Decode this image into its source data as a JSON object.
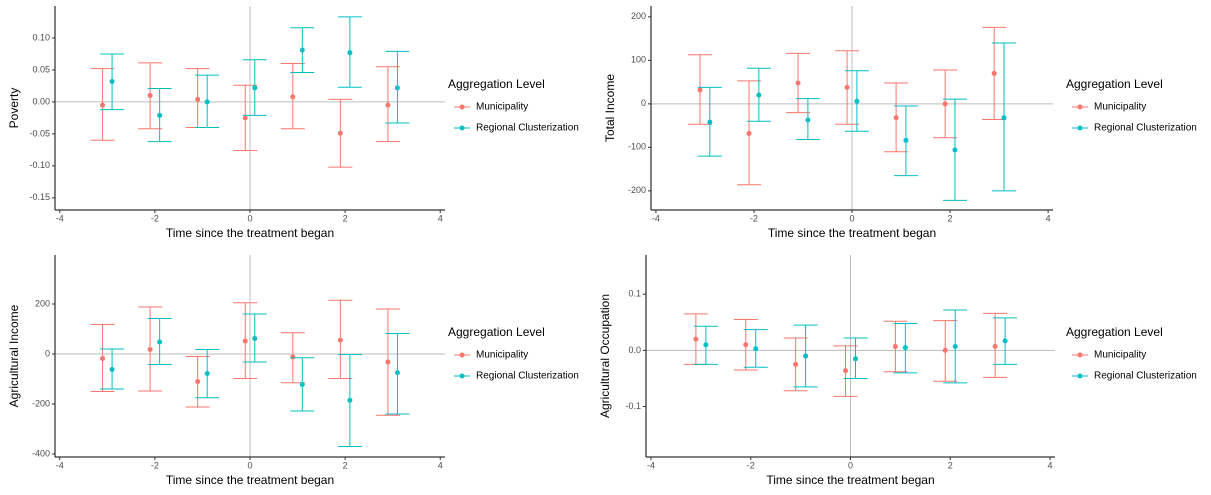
{
  "chart_data": [
    {
      "type": "errorbar",
      "x_label": "Time since the treatment began",
      "y_label": "Poverty",
      "legend_title": "Aggregation Level",
      "x": [
        -3,
        -2,
        -1,
        0,
        1,
        2,
        3
      ],
      "xlim": [
        -4.1,
        4.1
      ],
      "xticks": [
        -4,
        -2,
        0,
        2,
        4
      ],
      "ylim": [
        -0.169,
        0.15
      ],
      "yticks": [
        {
          "value": -0.15,
          "label": "-0.15"
        },
        {
          "value": -0.1,
          "label": "-0.10"
        },
        {
          "value": -0.05,
          "label": "-0.05"
        },
        {
          "value": 0,
          "label": "0.00"
        },
        {
          "value": 0.05,
          "label": "0.05"
        },
        {
          "value": 0.1,
          "label": "0.10"
        }
      ],
      "series": [
        {
          "name": "Municipality",
          "color": "#F8766D",
          "values": [
            -0.005,
            0.01,
            0.004,
            -0.025,
            0.008,
            -0.049,
            -0.005
          ],
          "lower": [
            -0.06,
            -0.042,
            -0.04,
            -0.076,
            -0.042,
            -0.102,
            -0.062
          ],
          "upper": [
            0.052,
            0.061,
            0.052,
            0.026,
            0.06,
            0.004,
            0.055
          ]
        },
        {
          "name": "Regional Clusterization",
          "color": "#00BFC4",
          "values": [
            0.032,
            -0.021,
            0.0,
            0.022,
            0.081,
            0.077,
            0.022
          ],
          "lower": [
            -0.012,
            -0.062,
            -0.04,
            -0.021,
            0.046,
            0.023,
            -0.033
          ],
          "upper": [
            0.075,
            0.021,
            0.042,
            0.066,
            0.116,
            0.133,
            0.079
          ]
        }
      ]
    },
    {
      "type": "errorbar",
      "x_label": "Time since the treatment began",
      "y_label": "Total Income",
      "legend_title": "Aggregation Level",
      "x": [
        -3,
        -2,
        -1,
        0,
        1,
        2,
        3
      ],
      "xlim": [
        -4.1,
        4.1
      ],
      "xticks": [
        -4,
        -2,
        0,
        2,
        4
      ],
      "ylim": [
        -244,
        225
      ],
      "yticks": [
        -200,
        -100,
        0,
        100,
        200
      ],
      "series": [
        {
          "name": "Municipality",
          "color": "#F8766D",
          "values": [
            32,
            -68,
            48,
            38,
            -32,
            0,
            70
          ],
          "lower": [
            -47,
            -186,
            -20,
            -47,
            -110,
            -78,
            -36
          ],
          "upper": [
            113,
            53,
            116,
            122,
            48,
            78,
            176
          ]
        },
        {
          "name": "Regional Clusterization",
          "color": "#00BFC4",
          "values": [
            -42,
            20,
            -37,
            6,
            -84,
            -106,
            -32
          ],
          "lower": [
            -120,
            -40,
            -82,
            -63,
            -165,
            -222,
            -200
          ],
          "upper": [
            38,
            82,
            12,
            76,
            -5,
            11,
            140
          ]
        }
      ]
    },
    {
      "type": "errorbar",
      "x_label": "Time since the treatment began",
      "y_label": "Agricultural Income",
      "legend_title": "Aggregation Level",
      "x": [
        -3,
        -2,
        -1,
        0,
        1,
        2,
        3
      ],
      "xlim": [
        -4.1,
        4.1
      ],
      "xticks": [
        -4,
        -2,
        0,
        2,
        4
      ],
      "ylim": [
        -412,
        396
      ],
      "yticks": [
        -400,
        -200,
        0,
        200
      ],
      "series": [
        {
          "name": "Municipality",
          "color": "#F8766D",
          "values": [
            -18,
            18,
            -110,
            52,
            -12,
            55,
            -32
          ],
          "lower": [
            -150,
            -148,
            -212,
            -98,
            -115,
            -98,
            -245
          ],
          "upper": [
            118,
            188,
            -10,
            205,
            85,
            215,
            180
          ]
        },
        {
          "name": "Regional Clusterization",
          "color": "#00BFC4",
          "values": [
            -62,
            48,
            -78,
            62,
            -122,
            -185,
            -75
          ],
          "lower": [
            -140,
            -42,
            -175,
            -32,
            -228,
            -370,
            -240
          ],
          "upper": [
            20,
            142,
            18,
            160,
            -15,
            -2,
            82
          ]
        }
      ]
    },
    {
      "type": "errorbar",
      "x_label": "Time since the treatment began",
      "y_label": "Agricultural Occupation",
      "legend_title": "Aggregation Level",
      "x": [
        -3,
        -2,
        -1,
        0,
        1,
        2,
        3
      ],
      "xlim": [
        -4.1,
        4.1
      ],
      "xticks": [
        -4,
        -2,
        0,
        2,
        4
      ],
      "ylim": [
        -0.19,
        0.17
      ],
      "yticks": [
        -0.1,
        {
          "value": 0,
          "label": "0.0"
        },
        0.1
      ],
      "series": [
        {
          "name": "Municipality",
          "color": "#F8766D",
          "values": [
            0.02,
            0.01,
            -0.025,
            -0.036,
            0.007,
            0.0,
            0.007
          ],
          "lower": [
            -0.025,
            -0.035,
            -0.072,
            -0.082,
            -0.038,
            -0.055,
            -0.048
          ],
          "upper": [
            0.065,
            0.055,
            0.022,
            0.008,
            0.052,
            0.053,
            0.066
          ]
        },
        {
          "name": "Regional Clusterization",
          "color": "#00BFC4",
          "values": [
            0.01,
            0.003,
            -0.01,
            -0.015,
            0.005,
            0.007,
            0.017
          ],
          "lower": [
            -0.025,
            -0.03,
            -0.065,
            -0.05,
            -0.04,
            -0.058,
            -0.025
          ],
          "upper": [
            0.043,
            0.037,
            0.045,
            0.022,
            0.048,
            0.072,
            0.058
          ]
        }
      ]
    }
  ]
}
